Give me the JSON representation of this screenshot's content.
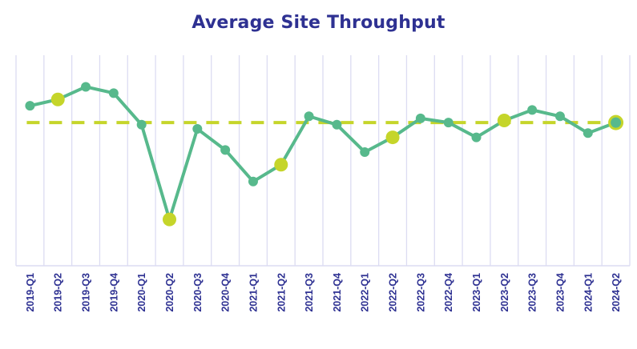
{
  "header": {
    "title": "Average Site Throughput"
  },
  "colors": {
    "title": "#2e3192",
    "line": "#57b98c",
    "highlight": "#c5d52a",
    "reference_line": "#c5d52a",
    "grid": "#dcdcf2",
    "axis_labels": "#2e3192"
  },
  "chart_data": {
    "type": "line",
    "title": "Average Site Throughput",
    "xlabel": "",
    "ylabel": "",
    "categories": [
      "2019-Q1",
      "2019-Q2",
      "2019-Q3",
      "2019-Q4",
      "2020-Q1",
      "2020-Q2",
      "2020-Q3",
      "2020-Q4",
      "2021-Q1",
      "2021-Q2",
      "2021-Q3",
      "2021-Q4",
      "2022-Q1",
      "2022-Q2",
      "2022-Q3",
      "2022-Q4",
      "2023-Q1",
      "2023-Q2",
      "2023-Q3",
      "2023-Q4",
      "2024-Q1",
      "2024-Q2"
    ],
    "series": [
      {
        "name": "Average Site Throughput",
        "values": [
          76,
          79,
          85,
          82,
          67,
          22,
          65,
          55,
          40,
          48,
          71,
          67,
          54,
          61,
          70,
          68,
          61,
          69,
          74,
          71,
          63,
          68
        ]
      }
    ],
    "highlighted_points": [
      "2019-Q2",
      "2020-Q2",
      "2021-Q2",
      "2022-Q2",
      "2023-Q2",
      "2024-Q2"
    ],
    "reference_line": {
      "style": "dashed",
      "value": 68,
      "label": ""
    },
    "ylim": [
      0,
      100
    ],
    "y_axis_visible": false,
    "grid": {
      "vertical": true,
      "horizontal": false
    },
    "legend": "none",
    "x_tick_rotation": -90
  }
}
